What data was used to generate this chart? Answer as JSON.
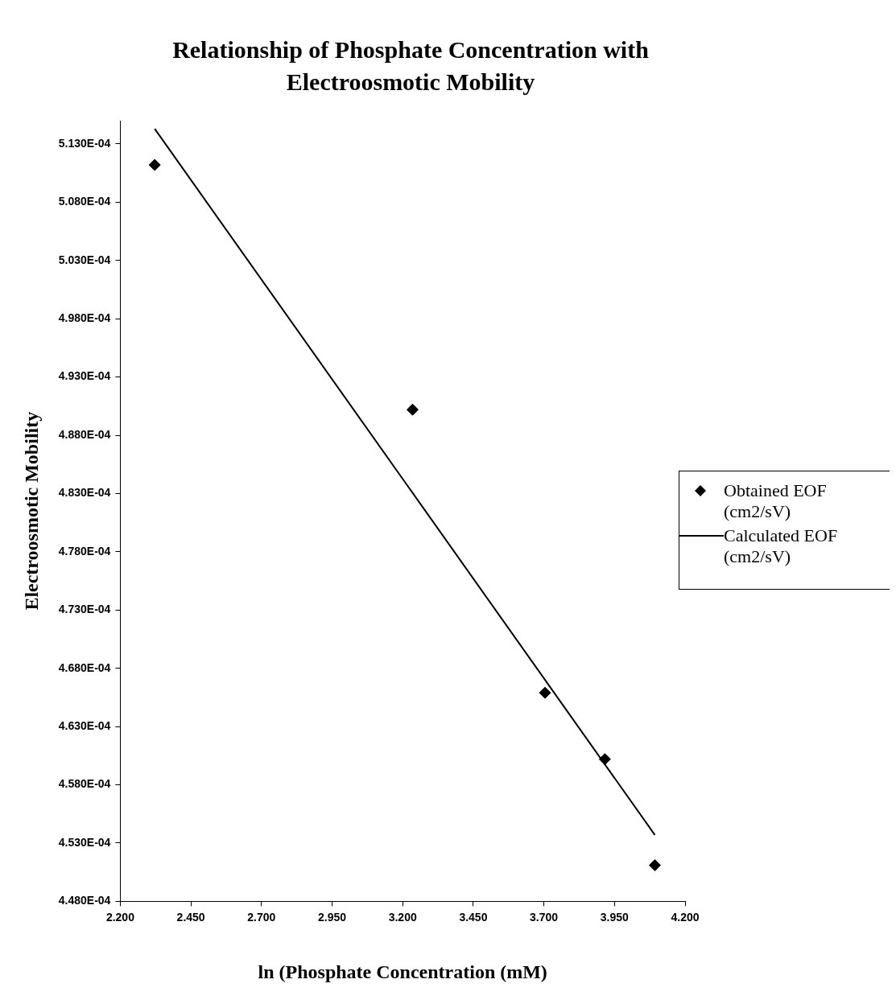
{
  "chart_data": {
    "type": "scatter",
    "title": "Relationship of Phosphate Concentration with Electroosmotic Mobility",
    "xlabel": "ln (Phosphate Concentration (mM)",
    "ylabel": "Electroosmotic Mobility",
    "xlim": [
      2.2,
      4.2
    ],
    "xticks": [
      {
        "value": 2.2,
        "label": "2.200"
      },
      {
        "value": 2.45,
        "label": "2.450"
      },
      {
        "value": 2.7,
        "label": "2.700"
      },
      {
        "value": 2.95,
        "label": "2.950"
      },
      {
        "value": 3.2,
        "label": "3.200"
      },
      {
        "value": 3.45,
        "label": "3.450"
      },
      {
        "value": 3.7,
        "label": "3.700"
      },
      {
        "value": 3.95,
        "label": "3.950"
      },
      {
        "value": 4.2,
        "label": "4.200"
      }
    ],
    "ylim": [
      0.000448,
      0.000515
    ],
    "yticks": [
      {
        "value": 0.000448,
        "label": "4.480E-04"
      },
      {
        "value": 0.000453,
        "label": "4.530E-04"
      },
      {
        "value": 0.000458,
        "label": "4.580E-04"
      },
      {
        "value": 0.000463,
        "label": "4.630E-04"
      },
      {
        "value": 0.000468,
        "label": "4.680E-04"
      },
      {
        "value": 0.000473,
        "label": "4.730E-04"
      },
      {
        "value": 0.000478,
        "label": "4.780E-04"
      },
      {
        "value": 0.000483,
        "label": "4.830E-04"
      },
      {
        "value": 0.000488,
        "label": "4.880E-04"
      },
      {
        "value": 0.000493,
        "label": "4.930E-04"
      },
      {
        "value": 0.000498,
        "label": "4.980E-04"
      },
      {
        "value": 0.000503,
        "label": "5.030E-04"
      },
      {
        "value": 0.000508,
        "label": "5.080E-04"
      },
      {
        "value": 0.000513,
        "label": "5.130E-04"
      }
    ],
    "legend": "right",
    "series": [
      {
        "name": "Obtained EOF (cm2/sV)",
        "type": "scatter",
        "marker": "diamond",
        "color": "#000000",
        "x": [
          2.322,
          3.235,
          3.704,
          3.916,
          4.093
        ],
        "values": [
          0.0005112,
          0.0004902,
          0.0004659,
          0.0004602,
          0.0004511
        ]
      },
      {
        "name": "Calculated EOF (cm2/sV)",
        "type": "line",
        "marker": "none",
        "line_style": "solid",
        "color": "#000000",
        "x": [
          2.322,
          4.093
        ],
        "values": [
          0.0005143,
          0.0004537
        ]
      }
    ]
  }
}
